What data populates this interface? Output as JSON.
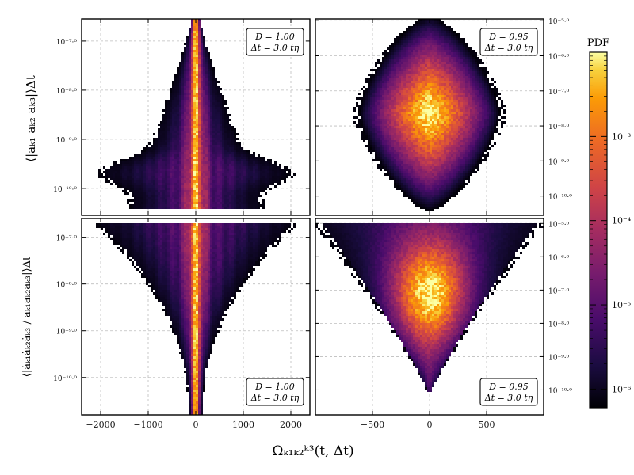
{
  "chart_data": {
    "type": "heatmap",
    "layout": "2x2",
    "colormap": "inferno",
    "colorbar": {
      "label": "PDF",
      "scale": "log",
      "range": [
        6e-07,
        0.01
      ],
      "ticks": [
        "10⁻⁶",
        "10⁻⁵",
        "10⁻⁴",
        "10⁻³"
      ]
    },
    "xlabel": "Ωₖ₁ₖ₂ᵏ³(t, Δt)",
    "ylabel_top": "⟨|aₖ₁ aₖ₂ aₖ₃|⟩Δt",
    "ylabel_bottom": "⟨|ȧₖ₁ȧₖ₂ȧₖ₃ / aₖ₁aₖ₂aₖ₃|⟩Δt",
    "panels": [
      {
        "row": 0,
        "col": 0,
        "D": "1.00",
        "dt": "3.0",
        "annotation_line1": "D = 1.00",
        "annotation_line2": "Δt = 3.0 tη",
        "xlim": [
          -2400,
          2400
        ],
        "xticks": [
          -2000,
          -1000,
          0,
          1000,
          2000
        ],
        "ylim_exp": [
          -10.55,
          -6.55
        ],
        "yticks_exp": [
          -7.0,
          -8.0,
          -9.0,
          -10.0
        ],
        "y_tick_labels": [
          "10⁻⁷·⁰",
          "10⁻⁸·⁰",
          "10⁻⁹·⁰",
          "10⁻¹⁰·⁰"
        ],
        "yaxis_side": "left",
        "shape": "spike-top"
      },
      {
        "row": 0,
        "col": 1,
        "D": "0.95",
        "dt": "3.0",
        "annotation_line1": "D = 0.95",
        "annotation_line2": "Δt = 3.0 tη",
        "xlim": [
          -1000,
          1000
        ],
        "xticks": [
          -500,
          0,
          500
        ],
        "ylim_exp": [
          -10.55,
          -4.95
        ],
        "yticks_exp": [
          -5.0,
          -6.0,
          -7.0,
          -8.0,
          -9.0,
          -10.0
        ],
        "y_tick_labels": [
          "10⁻⁵·⁰",
          "10⁻⁶·⁰",
          "10⁻⁷·⁰",
          "10⁻⁸·⁰",
          "10⁻⁹·⁰",
          "10⁻¹⁰·⁰"
        ],
        "yaxis_side": "right",
        "shape": "diamond"
      },
      {
        "row": 1,
        "col": 0,
        "D": "1.00",
        "dt": "3.0",
        "annotation_line1": "D = 1.00",
        "annotation_line2": "Δt = 3.0 tη",
        "xlim": [
          -2400,
          2400
        ],
        "xticks": [
          -2000,
          -1000,
          0,
          1000,
          2000
        ],
        "ylim_exp": [
          -10.8,
          -6.6
        ],
        "yticks_exp": [
          -7.0,
          -8.0,
          -9.0,
          -10.0
        ],
        "y_tick_labels": [
          "10⁻⁷·⁰",
          "10⁻⁸·⁰",
          "10⁻⁹·⁰",
          "10⁻¹⁰·⁰"
        ],
        "x_tick_labels": [
          "−2000",
          "−1000",
          "0",
          "1000",
          "2000"
        ],
        "yaxis_side": "left",
        "shape": "funnel-narrow"
      },
      {
        "row": 1,
        "col": 1,
        "D": "0.95",
        "dt": "3.0",
        "annotation_line1": "D = 0.95",
        "annotation_line2": "Δt = 3.0 tη",
        "xlim": [
          -1000,
          1000
        ],
        "xticks": [
          -500,
          0,
          500
        ],
        "ylim_exp": [
          -10.75,
          -4.85
        ],
        "yticks_exp": [
          -5.0,
          -6.0,
          -7.0,
          -8.0,
          -9.0,
          -10.0
        ],
        "y_tick_labels": [
          "10⁻⁵·⁰",
          "10⁻⁶·⁰",
          "10⁻⁷·⁰",
          "10⁻⁸·⁰",
          "10⁻⁹·⁰",
          "10⁻¹⁰·⁰"
        ],
        "x_tick_labels": [
          "−500",
          "0",
          "500"
        ],
        "yaxis_side": "right",
        "shape": "funnel-wide"
      }
    ]
  }
}
